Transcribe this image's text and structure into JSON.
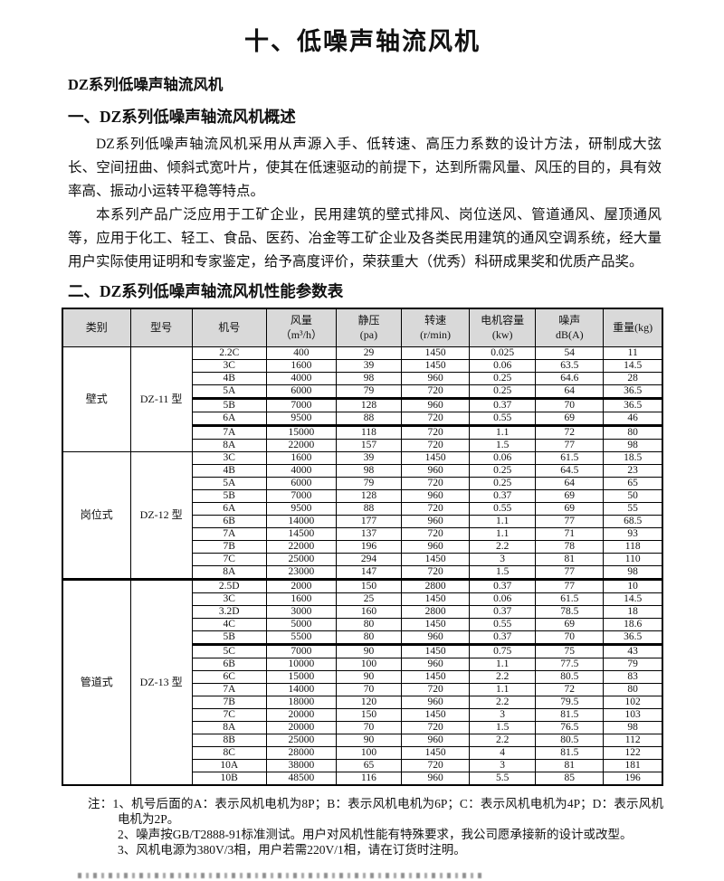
{
  "doc": {
    "title": "十、低噪声轴流风机",
    "subtitle": "DZ系列低噪声轴流风机",
    "section1_heading": "一、DZ系列低噪声轴流风机概述",
    "section1": {
      "paragraphs": [
        "DZ系列低噪声轴流风机采用从声源入手、低转速、高压力系数的设计方法，研制成大弦长、空间扭曲、倾斜式宽叶片，使其在低速驱动的前提下，达到所需风量、风压的目的，具有效率高、振动小运转平稳等特点。",
        "本系列产品广泛应用于工矿企业，民用建筑的壁式排风、岗位送风、管道通风、屋顶通风等，应用于化工、轻工、食品、医药、冶金等工矿企业及各类民用建筑的通风空调系统，经大量用户实际使用证明和专家鉴定，给予高度评价，荣获重大（优秀）科研成果奖和优质产品奖。"
      ]
    },
    "section2_heading": "二、DZ系列低噪声轴流风机性能参数表"
  },
  "table": {
    "headers": [
      {
        "l1": "类别",
        "l2": ""
      },
      {
        "l1": "型号",
        "l2": ""
      },
      {
        "l1": "机号",
        "l2": ""
      },
      {
        "l1": "风量",
        "l2": "（m³/h）"
      },
      {
        "l1": "静压",
        "l2": "(pa)"
      },
      {
        "l1": "转速",
        "l2": "(r/min)"
      },
      {
        "l1": "电机容量",
        "l2": "(kw)"
      },
      {
        "l1": "噪声",
        "l2": "dB(A)"
      },
      {
        "l1": "重量(kg)",
        "l2": ""
      }
    ],
    "header_bg": "#d9d9d9",
    "shaded_bg": "#d9d9d9",
    "groups": [
      {
        "category": "壁式",
        "model": "DZ-11 型",
        "shaded": false,
        "boundary_top": false,
        "thick_after": [
          3,
          5
        ],
        "rows": [
          [
            "2.2C",
            "400",
            "29",
            "1450",
            "0.025",
            "54",
            "11"
          ],
          [
            "3C",
            "1600",
            "39",
            "1450",
            "0.06",
            "63.5",
            "14.5"
          ],
          [
            "4B",
            "4000",
            "98",
            "960",
            "0.25",
            "64.6",
            "28"
          ],
          [
            "5A",
            "6000",
            "79",
            "720",
            "0.25",
            "64",
            "36.5"
          ],
          [
            "5B",
            "7000",
            "128",
            "960",
            "0.37",
            "70",
            "36.5"
          ],
          [
            "6A",
            "9500",
            "88",
            "720",
            "0.55",
            "69",
            "46"
          ],
          [
            "7A",
            "15000",
            "118",
            "720",
            "1.1",
            "72",
            "80"
          ],
          [
            "8A",
            "22000",
            "157",
            "720",
            "1.5",
            "77",
            "98"
          ]
        ]
      },
      {
        "category": "岗位式",
        "model": "DZ-12 型",
        "shaded": true,
        "boundary_top": false,
        "thick_after": [],
        "rows": [
          [
            "3C",
            "1600",
            "39",
            "1450",
            "0.06",
            "61.5",
            "18.5"
          ],
          [
            "4B",
            "4000",
            "98",
            "960",
            "0.25",
            "64.5",
            "23"
          ],
          [
            "5A",
            "6000",
            "79",
            "720",
            "0.25",
            "64",
            "65"
          ],
          [
            "5B",
            "7000",
            "128",
            "960",
            "0.37",
            "69",
            "50"
          ],
          [
            "6A",
            "9500",
            "88",
            "720",
            "0.55",
            "69",
            "55"
          ],
          [
            "6B",
            "14000",
            "177",
            "960",
            "1.1",
            "77",
            "68.5"
          ],
          [
            "7A",
            "14500",
            "137",
            "720",
            "1.1",
            "71",
            "93"
          ],
          [
            "7B",
            "22000",
            "196",
            "960",
            "2.2",
            "78",
            "118"
          ],
          [
            "7C",
            "25000",
            "294",
            "1450",
            "3",
            "81",
            "110"
          ],
          [
            "8A",
            "23000",
            "147",
            "720",
            "1.5",
            "77",
            "98"
          ]
        ]
      },
      {
        "category": "管道式",
        "model": "DZ-13 型",
        "shaded": false,
        "boundary_top": true,
        "thick_after": [
          4
        ],
        "rows": [
          [
            "2.5D",
            "2000",
            "150",
            "2800",
            "0.37",
            "77",
            "10"
          ],
          [
            "3C",
            "1600",
            "25",
            "1450",
            "0.06",
            "61.5",
            "14.5"
          ],
          [
            "3.2D",
            "3000",
            "160",
            "2800",
            "0.37",
            "78.5",
            "18"
          ],
          [
            "4C",
            "5000",
            "80",
            "1450",
            "0.55",
            "69",
            "18.6"
          ],
          [
            "5B",
            "5500",
            "80",
            "960",
            "0.37",
            "70",
            "36.5"
          ],
          [
            "5C",
            "7000",
            "90",
            "1450",
            "0.75",
            "75",
            "43"
          ],
          [
            "6B",
            "10000",
            "100",
            "960",
            "1.1",
            "77.5",
            "79"
          ],
          [
            "6C",
            "15000",
            "90",
            "1450",
            "2.2",
            "80.5",
            "83"
          ],
          [
            "7A",
            "14000",
            "70",
            "720",
            "1.1",
            "72",
            "80"
          ],
          [
            "7B",
            "18000",
            "120",
            "960",
            "2.2",
            "79.5",
            "102"
          ],
          [
            "7C",
            "20000",
            "150",
            "1450",
            "3",
            "81.5",
            "103"
          ],
          [
            "8A",
            "20000",
            "70",
            "720",
            "1.5",
            "76.5",
            "98"
          ],
          [
            "8B",
            "25000",
            "90",
            "960",
            "2.2",
            "80.5",
            "112"
          ],
          [
            "8C",
            "28000",
            "100",
            "1450",
            "4",
            "81.5",
            "122"
          ],
          [
            "10A",
            "38000",
            "65",
            "720",
            "3",
            "81",
            "181"
          ],
          [
            "10B",
            "48500",
            "116",
            "960",
            "5.5",
            "85",
            "196"
          ]
        ]
      }
    ]
  },
  "notes": {
    "prefix": "注：",
    "items": [
      "1、机号后面的A：表示风机电机为8P；B：表示风机电机为6P；C：表示风机电机为4P；D：表示风机电机为2P。",
      "2、噪声按GB/T2888-91标准测试。用户对风机性能有特殊要求，我公司愿承接新的设计或改型。",
      "3、风机电源为380V/3相，用户若需220V/1相，请在订货时注明。"
    ]
  }
}
